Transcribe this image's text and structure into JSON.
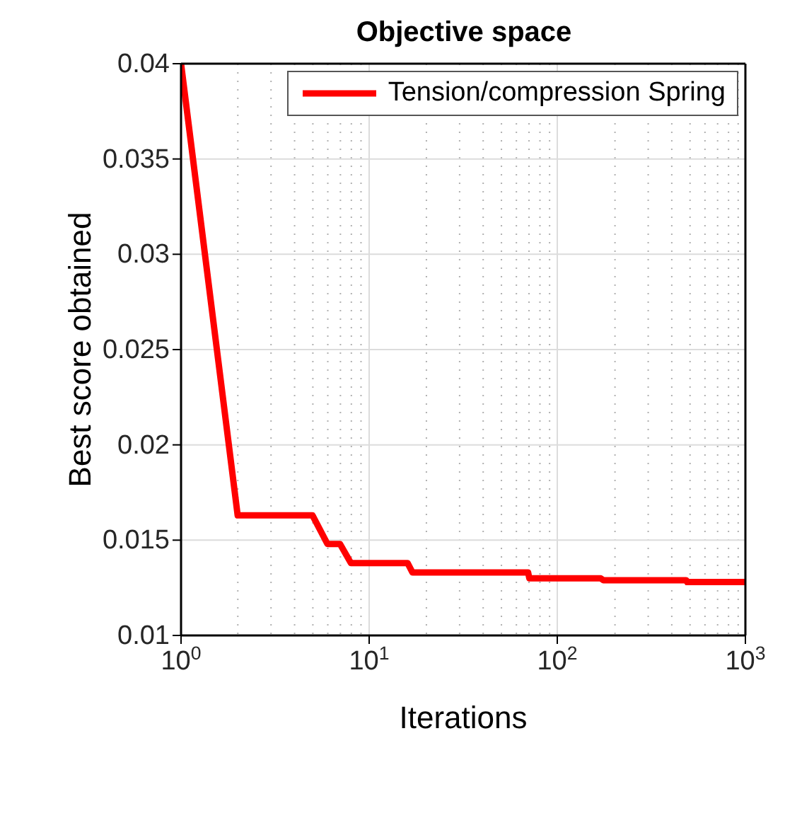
{
  "chart_data": {
    "type": "line",
    "title": "Objective space",
    "xlabel": "Iterations",
    "ylabel": "Best score obtained",
    "x": [
      1,
      2,
      5,
      6,
      7,
      8,
      16,
      17,
      70,
      71,
      170,
      176,
      485,
      490,
      1000
    ],
    "series": [
      {
        "name": "Tension/compression Spring",
        "color": "#ff0000",
        "values": [
          0.04,
          0.0163,
          0.0163,
          0.0148,
          0.0148,
          0.0138,
          0.0138,
          0.0133,
          0.0133,
          0.013,
          0.013,
          0.0129,
          0.0129,
          0.0128,
          0.0128
        ]
      }
    ],
    "log": "x",
    "xlim": [
      1,
      1000
    ],
    "xticks": [
      {
        "value": 1,
        "label": "10$^{0}$"
      },
      {
        "value": 10,
        "label": "10$^{1}$"
      },
      {
        "value": 100,
        "label": "10$^{2}$"
      },
      {
        "value": 1000,
        "label": "10$^{3}$"
      }
    ],
    "ylim": [
      0.01,
      0.04
    ],
    "yticks": [
      0.01,
      0.015,
      0.02,
      0.025,
      0.03,
      0.035,
      0.04
    ],
    "grid": true,
    "legend": "top right",
    "marker": "none",
    "line_style": "solid"
  }
}
